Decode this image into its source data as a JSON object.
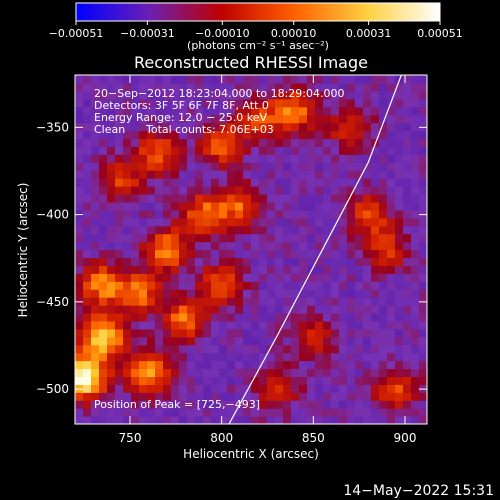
{
  "chart_data": {
    "type": "heatmap",
    "title": "Reconstructed RHESSI Image",
    "xlabel": "Heliocentric X (arcsec)",
    "ylabel": "Heliocentric Y (arcsec)",
    "x_ticks": [
      "750",
      "800",
      "850",
      "900"
    ],
    "y_ticks": [
      "−350",
      "−400",
      "−450",
      "−500"
    ],
    "x_tick_values": [
      750,
      800,
      850,
      900
    ],
    "y_tick_values": [
      -350,
      -400,
      -450,
      -500
    ],
    "xlim": [
      720,
      912
    ],
    "ylim": [
      -520,
      -320
    ],
    "colorbar": {
      "ticks": [
        "−0.00051",
        "−0.00031",
        "−0.00010",
        "0.00010",
        "0.00031",
        "0.00051"
      ],
      "tick_values": [
        -0.00051,
        -0.00031,
        -0.0001,
        0.0001,
        0.00031,
        0.00051
      ],
      "range": [
        -0.00051,
        0.00051
      ],
      "unit_label": "(photons cm⁻² s⁻¹ asec⁻²)",
      "colors": [
        "#0000ff",
        "#6a1fb5",
        "#c00000",
        "#ff6000",
        "#ffd040",
        "#ffffff"
      ]
    },
    "annotations": {
      "time_range": "20−Sep−2012 18:23:04.000 to 18:29:04.000",
      "detectors": "Detectors: 3F 5F 6F 7F 8F, Att 0",
      "energy_range": "Energy Range: 12.0 − 25.0 keV",
      "method": "Clean",
      "total_counts": "Total counts: 7.06E+03",
      "peak": "Position of Peak = [725,−493]"
    },
    "peak_position": [
      725,
      -493
    ],
    "limb_curve": {
      "description_points": [
        [
          804,
          -520
        ],
        [
          830,
          -470
        ],
        [
          860,
          -410
        ],
        [
          880,
          -370
        ],
        [
          898,
          -320
        ]
      ]
    },
    "bright_regions": [
      {
        "x": 725,
        "y": -493,
        "level": 1.0
      },
      {
        "x": 735,
        "y": -470,
        "level": 0.85
      },
      {
        "x": 760,
        "y": -490,
        "level": 0.7
      },
      {
        "x": 735,
        "y": -440,
        "level": 0.6
      },
      {
        "x": 755,
        "y": -445,
        "level": 0.55
      },
      {
        "x": 770,
        "y": -420,
        "level": 0.6
      },
      {
        "x": 790,
        "y": -400,
        "level": 0.55
      },
      {
        "x": 810,
        "y": -395,
        "level": 0.5
      },
      {
        "x": 780,
        "y": -460,
        "level": 0.55
      },
      {
        "x": 800,
        "y": -440,
        "level": 0.5
      },
      {
        "x": 765,
        "y": -365,
        "level": 0.5
      },
      {
        "x": 800,
        "y": -360,
        "level": 0.5
      },
      {
        "x": 820,
        "y": -345,
        "level": 0.45
      },
      {
        "x": 840,
        "y": -340,
        "level": 0.55
      },
      {
        "x": 745,
        "y": -380,
        "level": 0.4
      },
      {
        "x": 880,
        "y": -400,
        "level": 0.45
      },
      {
        "x": 890,
        "y": -420,
        "level": 0.4
      },
      {
        "x": 870,
        "y": -350,
        "level": 0.4
      },
      {
        "x": 895,
        "y": -500,
        "level": 0.45
      },
      {
        "x": 830,
        "y": -500,
        "level": 0.4
      },
      {
        "x": 850,
        "y": -470,
        "level": 0.35
      }
    ]
  },
  "footer": {
    "timestamp": "14−May−2022 15:31"
  }
}
